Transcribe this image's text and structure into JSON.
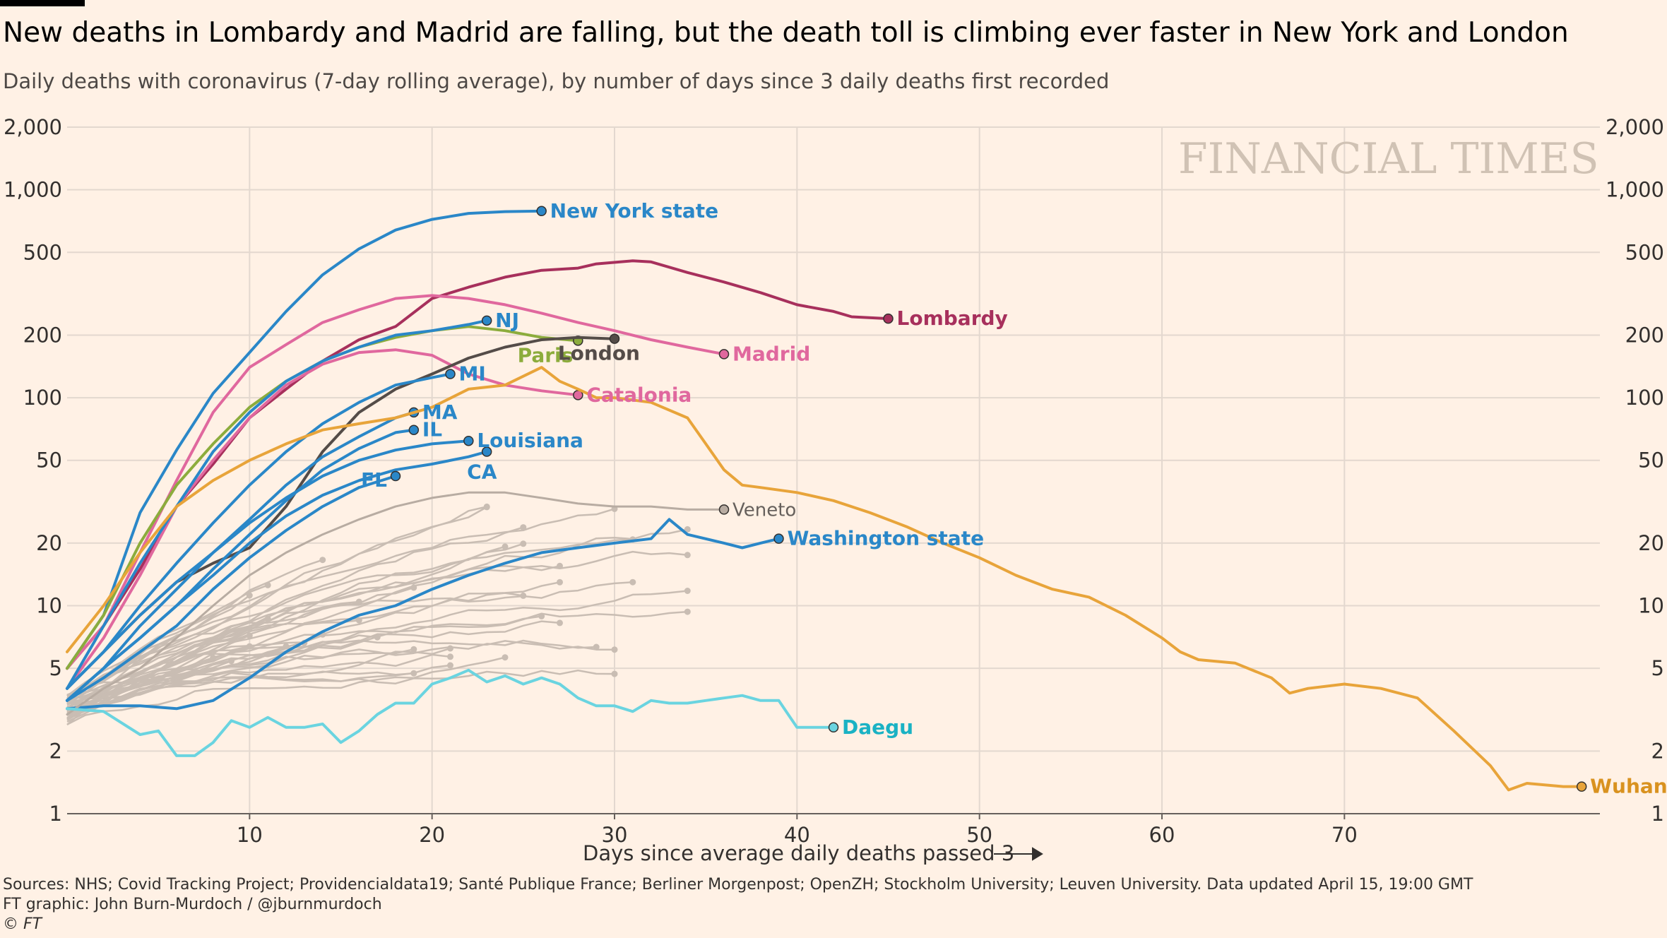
{
  "title": "New deaths in Lombardy and Madrid are falling, but the death toll is climbing ever faster in New York and London",
  "subtitle": "Daily deaths with coronavirus (7-day rolling average), by number of days since 3 daily deaths first recorded",
  "footer": {
    "sources": "Sources: NHS; Covid Tracking Project; Providencialdata19; Santé Publique France; Berliner Morgenpost; OpenZH; Stockholm University; Leuven University. Data updated April 15, 19:00 GMT",
    "credit": "FT graphic: John Burn-Murdoch / @jburnmurdoch",
    "copyright": "© FT"
  },
  "watermark": "FINANCIAL TIMES",
  "chart_data": {
    "type": "line",
    "xlabel": "Days since average daily deaths passed 3",
    "ylabel": "",
    "yscale": "log",
    "xlim": [
      0,
      84
    ],
    "ylim": [
      1,
      2000
    ],
    "xticks": [
      10,
      20,
      30,
      40,
      50,
      60,
      70
    ],
    "yticks": [
      1,
      2,
      5,
      10,
      20,
      50,
      100,
      200,
      500,
      1000,
      2000
    ],
    "ytick_labels": [
      "1",
      "2",
      "5",
      "10",
      "20",
      "50",
      "100",
      "200",
      "500",
      "1,000",
      "2,000"
    ],
    "grid": true,
    "colors": {
      "background": "#fff1e5",
      "grid": "#e3d8cf",
      "us": "#2a87c8",
      "lombardy": "#a7305c",
      "madrid": "#e0689e",
      "paris": "#8cac3c",
      "london": "#544c48",
      "wuhan": "#e8a43a",
      "daegu": "#6ad4e0",
      "others": "#c9bdb3"
    },
    "series": [
      {
        "name": "New York state",
        "color": "#2a87c8",
        "x": [
          0,
          2,
          4,
          6,
          8,
          10,
          12,
          14,
          16,
          18,
          20,
          22,
          24,
          26
        ],
        "y": [
          5,
          9,
          28,
          56,
          105,
          165,
          260,
          390,
          520,
          640,
          720,
          770,
          785,
          790
        ]
      },
      {
        "name": "Lombardy",
        "color": "#a7305c",
        "x": [
          0,
          2,
          4,
          6,
          8,
          10,
          12,
          14,
          16,
          18,
          20,
          22,
          24,
          26,
          28,
          29,
          31,
          32,
          34,
          36,
          38,
          40,
          42,
          43,
          45
        ],
        "y": [
          5,
          8,
          15,
          30,
          48,
          80,
          110,
          150,
          190,
          220,
          300,
          340,
          380,
          410,
          420,
          440,
          455,
          450,
          400,
          360,
          320,
          280,
          260,
          245,
          240
        ]
      },
      {
        "name": "Madrid",
        "color": "#e0689e",
        "x": [
          0,
          2,
          4,
          6,
          8,
          10,
          12,
          14,
          16,
          18,
          20,
          22,
          24,
          26,
          28,
          30,
          32,
          34,
          36
        ],
        "y": [
          5,
          8,
          18,
          40,
          85,
          140,
          180,
          230,
          265,
          300,
          310,
          300,
          280,
          255,
          230,
          210,
          190,
          175,
          162
        ]
      },
      {
        "name": "Catalonia",
        "color": "#e0689e",
        "x": [
          0,
          2,
          4,
          6,
          8,
          10,
          12,
          14,
          16,
          18,
          20,
          22,
          24,
          26,
          28
        ],
        "y": [
          4,
          7,
          14,
          30,
          50,
          80,
          115,
          145,
          165,
          170,
          160,
          130,
          115,
          108,
          103
        ]
      },
      {
        "name": "Paris",
        "color": "#8cac3c",
        "x": [
          0,
          2,
          4,
          6,
          8,
          10,
          12,
          14,
          16,
          18,
          20,
          22,
          24,
          26,
          28
        ],
        "y": [
          5,
          9,
          20,
          38,
          60,
          90,
          120,
          150,
          175,
          195,
          210,
          220,
          210,
          195,
          188
        ]
      },
      {
        "name": "London",
        "color": "#544c48",
        "x": [
          0,
          2,
          4,
          6,
          8,
          10,
          12,
          14,
          16,
          18,
          20,
          22,
          24,
          26,
          28,
          30
        ],
        "y": [
          4,
          6,
          9,
          13,
          16,
          19,
          30,
          55,
          85,
          110,
          130,
          155,
          175,
          190,
          195,
          192
        ]
      },
      {
        "name": "NJ",
        "color": "#2a87c8",
        "x": [
          0,
          2,
          4,
          6,
          8,
          10,
          12,
          14,
          16,
          18,
          20,
          22,
          23
        ],
        "y": [
          4,
          8,
          16,
          30,
          55,
          85,
          120,
          150,
          175,
          200,
          210,
          225,
          235
        ]
      },
      {
        "name": "MI",
        "color": "#2a87c8",
        "x": [
          0,
          2,
          4,
          6,
          8,
          10,
          12,
          14,
          16,
          18,
          20,
          21
        ],
        "y": [
          4,
          6,
          10,
          16,
          25,
          38,
          55,
          75,
          95,
          115,
          125,
          130
        ]
      },
      {
        "name": "MA",
        "color": "#2a87c8",
        "x": [
          0,
          2,
          4,
          6,
          8,
          10,
          12,
          14,
          16,
          18,
          19
        ],
        "y": [
          3.5,
          5,
          8,
          12,
          18,
          26,
          38,
          52,
          65,
          80,
          85
        ]
      },
      {
        "name": "IL",
        "color": "#2a87c8",
        "x": [
          0,
          2,
          4,
          6,
          8,
          10,
          12,
          14,
          16,
          18,
          19
        ],
        "y": [
          3.5,
          5,
          7,
          10,
          15,
          22,
          32,
          45,
          57,
          68,
          70
        ]
      },
      {
        "name": "Louisiana",
        "color": "#2a87c8",
        "x": [
          0,
          2,
          4,
          6,
          8,
          10,
          12,
          14,
          16,
          18,
          20,
          22
        ],
        "y": [
          4,
          6,
          9,
          13,
          18,
          25,
          33,
          42,
          50,
          56,
          60,
          62
        ]
      },
      {
        "name": "CA",
        "color": "#2a87c8",
        "x": [
          0,
          2,
          4,
          6,
          8,
          10,
          12,
          14,
          16,
          18,
          20,
          22,
          23
        ],
        "y": [
          3.5,
          5,
          7,
          10,
          14,
          20,
          27,
          34,
          40,
          45,
          48,
          52,
          55
        ]
      },
      {
        "name": "FL",
        "color": "#2a87c8",
        "x": [
          0,
          2,
          4,
          6,
          8,
          10,
          12,
          14,
          16,
          18
        ],
        "y": [
          3.5,
          4.5,
          6,
          8,
          12,
          17,
          23,
          30,
          37,
          42
        ]
      },
      {
        "name": "Washington state",
        "color": "#2a87c8",
        "x": [
          0,
          2,
          4,
          6,
          8,
          10,
          12,
          14,
          16,
          18,
          20,
          22,
          24,
          26,
          28,
          30,
          32,
          33,
          34,
          36,
          37,
          38,
          39
        ],
        "y": [
          3.2,
          3.3,
          3.3,
          3.2,
          3.5,
          4.5,
          6,
          7.5,
          9,
          10,
          12,
          14,
          16,
          18,
          19,
          20,
          21,
          26,
          22,
          20,
          19,
          20,
          21
        ]
      },
      {
        "name": "Veneto",
        "color": "#b8aca2",
        "x": [
          0,
          2,
          4,
          6,
          8,
          10,
          12,
          14,
          16,
          18,
          20,
          22,
          24,
          26,
          28,
          30,
          32,
          34,
          36
        ],
        "y": [
          3,
          4,
          5,
          7,
          10,
          14,
          18,
          22,
          26,
          30,
          33,
          35,
          35,
          33,
          31,
          30,
          30,
          29,
          29
        ]
      },
      {
        "name": "Daegu",
        "color": "#6ad4e0",
        "x": [
          0,
          2,
          4,
          5,
          6,
          7,
          8,
          9,
          10,
          11,
          12,
          13,
          14,
          15,
          16,
          17,
          18,
          19,
          20,
          21,
          22,
          23,
          24,
          25,
          26,
          27,
          28,
          29,
          30,
          31,
          32,
          33,
          34,
          35,
          36,
          37,
          38,
          39,
          40,
          41,
          42
        ],
        "y": [
          3.2,
          3.1,
          2.4,
          2.5,
          1.9,
          1.9,
          2.2,
          2.8,
          2.6,
          2.9,
          2.6,
          2.6,
          2.7,
          2.2,
          2.5,
          3,
          3.4,
          3.4,
          4.2,
          4.5,
          4.9,
          4.3,
          4.6,
          4.2,
          4.5,
          4.2,
          3.6,
          3.3,
          3.3,
          3.1,
          3.5,
          3.4,
          3.4,
          3.5,
          3.6,
          3.7,
          3.5,
          3.5,
          2.6,
          2.6,
          2.6
        ]
      },
      {
        "name": "Wuhan",
        "color": "#e8a43a",
        "x": [
          0,
          2,
          4,
          6,
          8,
          10,
          12,
          14,
          16,
          18,
          20,
          22,
          24,
          26,
          27,
          28,
          29,
          30,
          32,
          34,
          35,
          36,
          37,
          38,
          40,
          42,
          44,
          46,
          48,
          50,
          52,
          54,
          56,
          58,
          60,
          61,
          62,
          64,
          66,
          67,
          68,
          70,
          72,
          74,
          76,
          78,
          79,
          80,
          82,
          83
        ],
        "y": [
          6,
          10,
          18,
          30,
          40,
          50,
          60,
          70,
          75,
          80,
          90,
          110,
          115,
          140,
          120,
          110,
          100,
          100,
          95,
          80,
          60,
          45,
          38,
          37,
          35,
          32,
          28,
          24,
          20,
          17,
          14,
          12,
          11,
          9,
          7,
          6,
          5.5,
          5.3,
          4.5,
          3.8,
          4,
          4.2,
          4,
          3.6,
          2.5,
          1.7,
          1.3,
          1.4,
          1.35,
          1.35
        ]
      }
    ],
    "label_text": {
      "ny": "New York state",
      "lombardy": "Lombardy",
      "madrid": "Madrid",
      "nj": "NJ",
      "paris": "Paris",
      "london": "London",
      "catalonia": "Catalonia",
      "mi": "MI",
      "ma": "MA",
      "il": "IL",
      "louisiana": "Louisiana",
      "ca": "CA",
      "fl": "FL",
      "veneto": "Veneto",
      "washington": "Washington state",
      "daegu": "Daegu",
      "wuhan": "Wuhan"
    }
  }
}
